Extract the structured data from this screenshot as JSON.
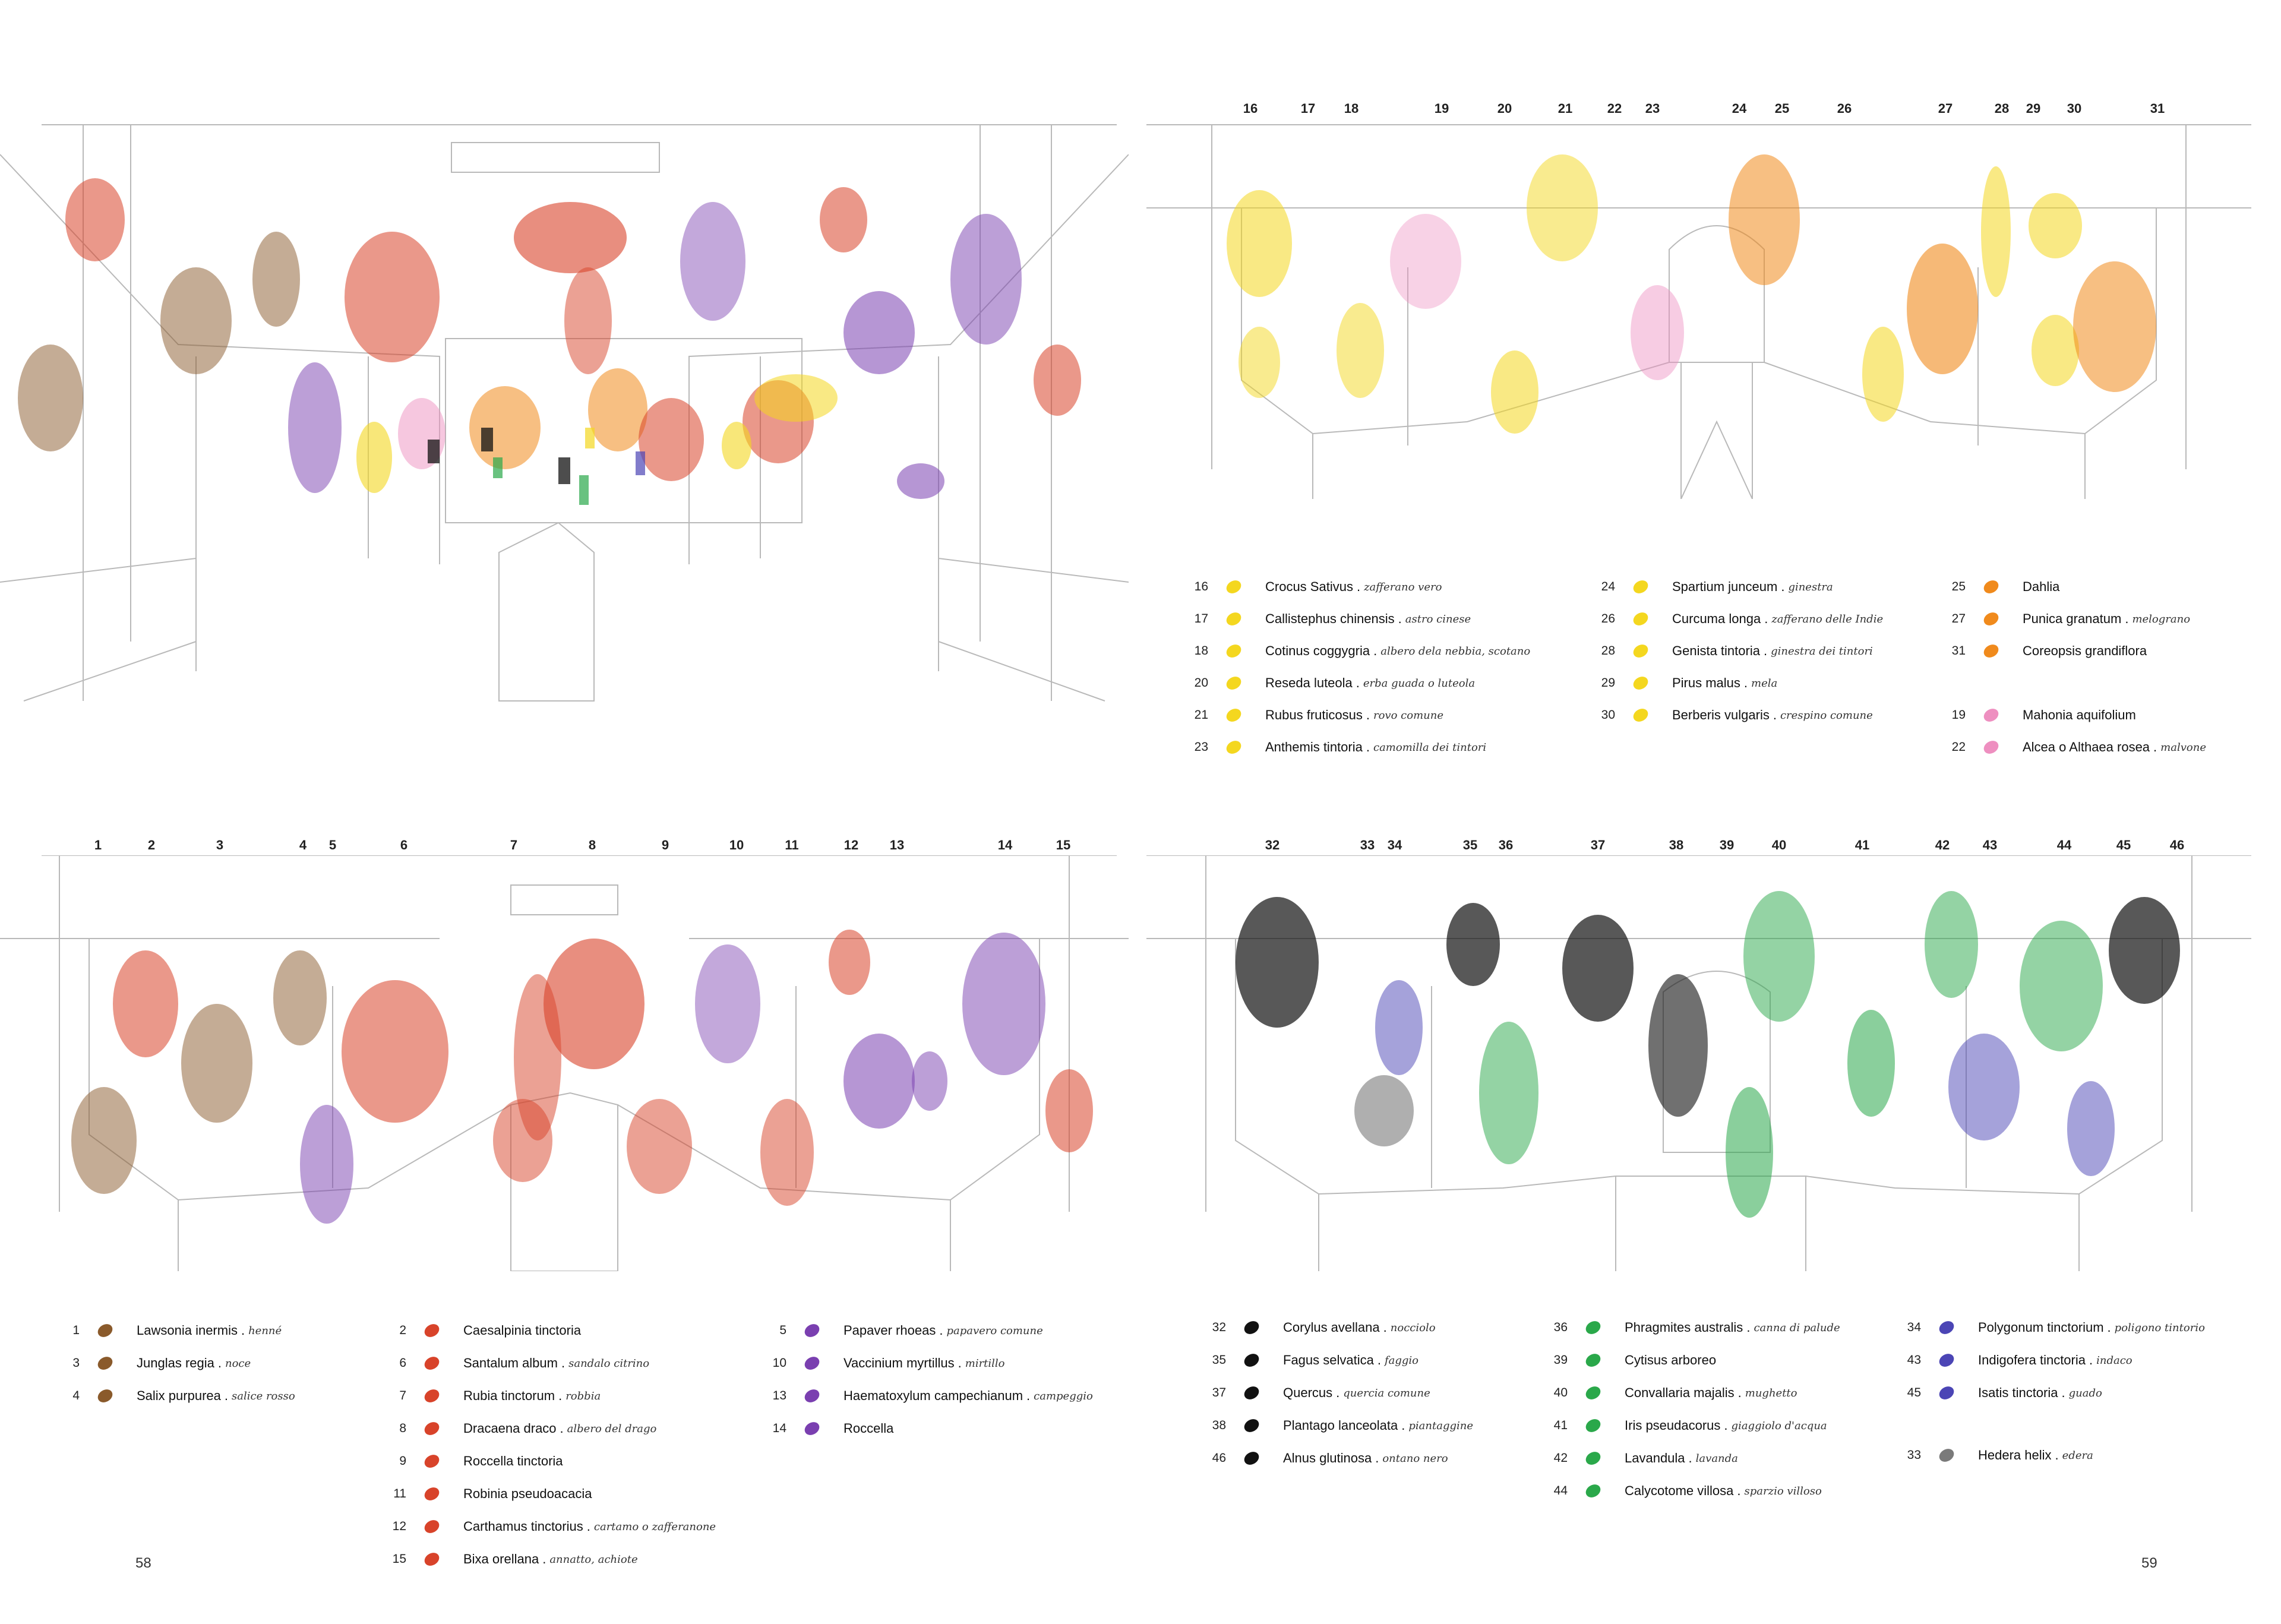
{
  "page_numbers": {
    "left": "58",
    "right": "59"
  },
  "colors": {
    "brown": "#8a5a2b",
    "red": "#d8432a",
    "purple": "#7a3fb0",
    "yellow": "#f4d71f",
    "orange": "#f08a1c",
    "pink": "#ee8fc0",
    "black": "#111111",
    "green": "#2aa84a",
    "blue": "#4b45b5",
    "grey": "#7a7a7a"
  },
  "panel_top_right": {
    "numbers": [
      "16",
      "17",
      "18",
      "19",
      "20",
      "21",
      "22",
      "23",
      "24",
      "25",
      "26",
      "27",
      "28",
      "29",
      "30",
      "31"
    ],
    "legend": [
      {
        "n": "16",
        "color": "yellow",
        "name": "Crocus Sativus",
        "common": "zafferano vero"
      },
      {
        "n": "17",
        "color": "yellow",
        "name": "Callistephus chinensis",
        "common": "astro cinese"
      },
      {
        "n": "18",
        "color": "yellow",
        "name": "Cotinus coggygria",
        "common": "albero dela nebbia, scotano"
      },
      {
        "n": "20",
        "color": "yellow",
        "name": "Reseda luteola",
        "common": "erba guada o luteola"
      },
      {
        "n": "21",
        "color": "yellow",
        "name": "Rubus fruticosus",
        "common": "rovo comune"
      },
      {
        "n": "23",
        "color": "yellow",
        "name": "Anthemis tintoria",
        "common": "camomilla dei tintori"
      },
      {
        "n": "24",
        "color": "yellow",
        "name": "Spartium junceum",
        "common": "ginestra"
      },
      {
        "n": "26",
        "color": "yellow",
        "name": "Curcuma longa",
        "common": "zafferano delle Indie"
      },
      {
        "n": "28",
        "color": "yellow",
        "name": "Genista tintoria",
        "common": "ginestra dei tintori"
      },
      {
        "n": "29",
        "color": "yellow",
        "name": "Pirus malus",
        "common": "mela"
      },
      {
        "n": "30",
        "color": "yellow",
        "name": "Berberis vulgaris",
        "common": "crespino comune"
      },
      {
        "n": "25",
        "color": "orange",
        "name": "Dahlia",
        "common": ""
      },
      {
        "n": "27",
        "color": "orange",
        "name": "Punica granatum",
        "common": "melograno"
      },
      {
        "n": "31",
        "color": "orange",
        "name": "Coreopsis grandiflora",
        "common": ""
      },
      {
        "n": "19",
        "color": "pink",
        "name": "Mahonia aquifolium",
        "common": ""
      },
      {
        "n": "22",
        "color": "pink",
        "name": "Alcea o Althaea rosea",
        "common": "malvone"
      }
    ]
  },
  "panel_bottom_left": {
    "numbers": [
      "1",
      "2",
      "3",
      "4",
      "5",
      "6",
      "7",
      "8",
      "9",
      "10",
      "11",
      "12",
      "13",
      "14",
      "15"
    ],
    "legend": [
      {
        "n": "1",
        "color": "brown",
        "name": "Lawsonia inermis",
        "common": "henné"
      },
      {
        "n": "3",
        "color": "brown",
        "name": "Junglas regia",
        "common": "noce"
      },
      {
        "n": "4",
        "color": "brown",
        "name": "Salix purpurea",
        "common": "salice rosso"
      },
      {
        "n": "2",
        "color": "red",
        "name": "Caesalpinia tinctoria",
        "common": ""
      },
      {
        "n": "6",
        "color": "red",
        "name": "Santalum album",
        "common": "sandalo citrino"
      },
      {
        "n": "7",
        "color": "red",
        "name": "Rubia tinctorum",
        "common": "robbia"
      },
      {
        "n": "8",
        "color": "red",
        "name": "Dracaena draco",
        "common": "albero del drago"
      },
      {
        "n": "9",
        "color": "red",
        "name": "Roccella tinctoria",
        "common": ""
      },
      {
        "n": "11",
        "color": "red",
        "name": "Robinia pseudoacacia",
        "common": ""
      },
      {
        "n": "12",
        "color": "red",
        "name": "Carthamus tinctorius",
        "common": "cartamo o zafferanone"
      },
      {
        "n": "15",
        "color": "red",
        "name": "Bixa orellana",
        "common": "annatto, achiote"
      },
      {
        "n": "5",
        "color": "purple",
        "name": "Papaver rhoeas",
        "common": "papavero comune"
      },
      {
        "n": "10",
        "color": "purple",
        "name": "Vaccinium myrtillus",
        "common": "mirtillo"
      },
      {
        "n": "13",
        "color": "purple",
        "name": "Haematoxylum campechianum",
        "common": "campeggio"
      },
      {
        "n": "14",
        "color": "purple",
        "name": "Roccella",
        "common": ""
      }
    ]
  },
  "panel_bottom_right": {
    "numbers": [
      "32",
      "33",
      "34",
      "35",
      "36",
      "37",
      "38",
      "39",
      "40",
      "41",
      "42",
      "43",
      "44",
      "45",
      "46"
    ],
    "legend": [
      {
        "n": "32",
        "color": "black",
        "name": "Corylus avellana",
        "common": "nocciolo"
      },
      {
        "n": "35",
        "color": "black",
        "name": "Fagus selvatica",
        "common": "faggio"
      },
      {
        "n": "37",
        "color": "black",
        "name": "Quercus",
        "common": "quercia comune"
      },
      {
        "n": "38",
        "color": "black",
        "name": "Plantago lanceolata",
        "common": "piantaggine"
      },
      {
        "n": "46",
        "color": "black",
        "name": "Alnus glutinosa",
        "common": "ontano nero"
      },
      {
        "n": "36",
        "color": "green",
        "name": "Phragmites australis",
        "common": "canna di palude"
      },
      {
        "n": "39",
        "color": "green",
        "name": "Cytisus arboreo",
        "common": ""
      },
      {
        "n": "40",
        "color": "green",
        "name": "Convallaria majalis",
        "common": "mughetto"
      },
      {
        "n": "41",
        "color": "green",
        "name": "Iris pseudacorus",
        "common": "giaggiolo d'acqua"
      },
      {
        "n": "42",
        "color": "green",
        "name": "Lavandula",
        "common": "lavanda"
      },
      {
        "n": "44",
        "color": "green",
        "name": "Calycotome villosa",
        "common": "sparzio villoso"
      },
      {
        "n": "34",
        "color": "blue",
        "name": "Polygonum tinctorium",
        "common": "poligono tintorio"
      },
      {
        "n": "43",
        "color": "blue",
        "name": "Indigofera tinctoria",
        "common": "indaco"
      },
      {
        "n": "45",
        "color": "blue",
        "name": "Isatis tinctoria",
        "common": "guado"
      },
      {
        "n": "33",
        "color": "grey",
        "name": "Hedera helix",
        "common": "edera"
      }
    ]
  }
}
